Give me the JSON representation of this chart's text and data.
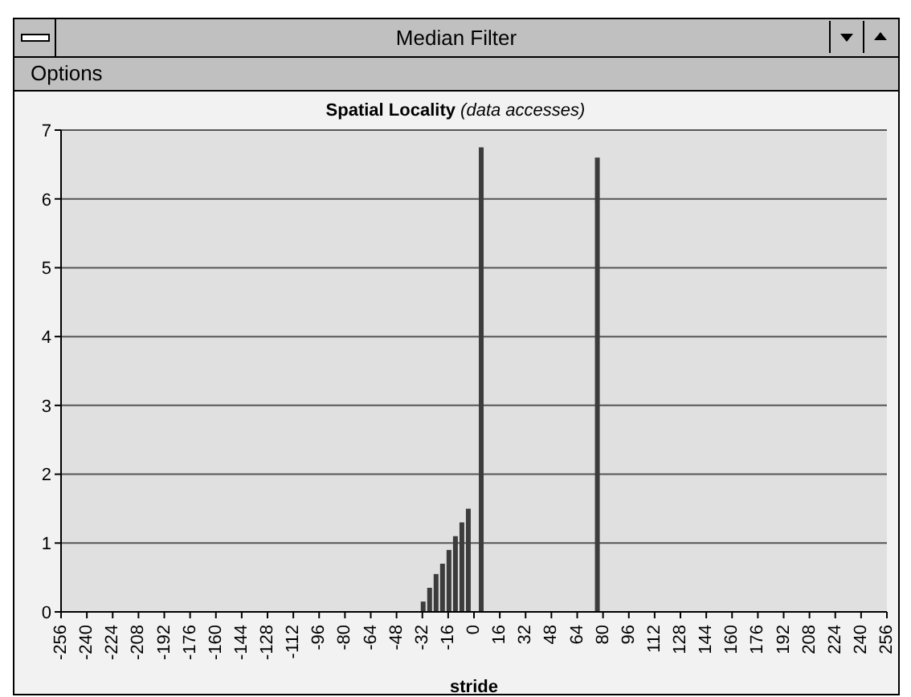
{
  "chart_data": {
    "type": "bar",
    "title": "Spatial Locality",
    "subtitle": "(data accesses)",
    "xlabel": "stride",
    "annotations": [
      "Median Filter",
      "Options"
    ],
    "x": [
      -32,
      -28,
      -24,
      -20,
      -16,
      -12,
      -8,
      -4,
      4,
      76
    ],
    "values": [
      0.15,
      0.35,
      0.55,
      0.7,
      0.9,
      1.1,
      1.3,
      1.5,
      6.75,
      6.6
    ],
    "color": "#3c3c3c",
    "xlim": [
      -256,
      256
    ],
    "xticks": [
      -256,
      -240,
      -224,
      -208,
      -192,
      -176,
      -160,
      -144,
      -128,
      -112,
      -96,
      -80,
      -64,
      -48,
      -32,
      -16,
      0,
      16,
      32,
      48,
      64,
      80,
      96,
      112,
      128,
      144,
      160,
      176,
      192,
      208,
      224,
      240,
      256
    ],
    "ylim": [
      0,
      7
    ],
    "yticks": [
      0,
      1,
      2,
      3,
      4,
      5,
      6,
      7
    ],
    "grid": "y"
  }
}
